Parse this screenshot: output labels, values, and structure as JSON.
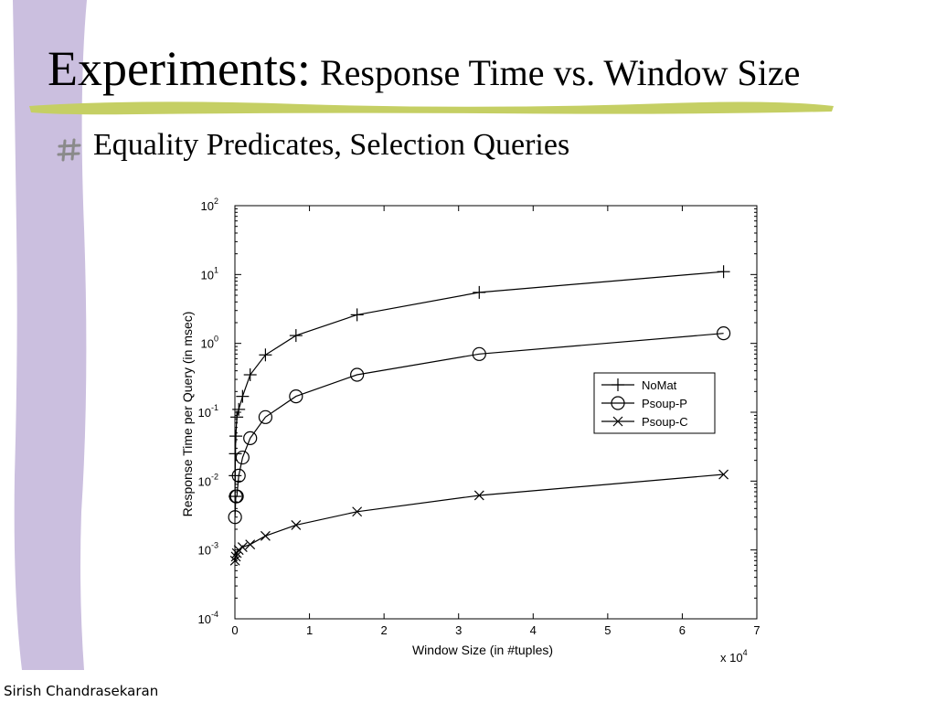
{
  "slide": {
    "title_main": "Experiments:",
    "title_sub": " Response Time vs. Window Size",
    "bullet_icon": "hash-bullet-icon",
    "bullet_text": "Equality Predicates, Selection Queries",
    "footer": "Sirish Chandrasekaran",
    "accent_bar_color": "#cbbfdf",
    "underline_color": "#c5cf64"
  },
  "chart_data": {
    "type": "line",
    "title": "",
    "xlabel": "Window Size (in #tuples)",
    "ylabel": "Response Time per Query (in msec)",
    "xscale_label": "x 10",
    "xscale_exp": "4",
    "yscale": "log",
    "xlim": [
      0,
      70000
    ],
    "ylim": [
      0.0001,
      100
    ],
    "xticks": [
      0,
      1,
      2,
      3,
      4,
      5,
      6,
      7
    ],
    "yticks": [
      {
        "base": "10",
        "exp": "-4",
        "value": 0.0001
      },
      {
        "base": "10",
        "exp": "-3",
        "value": 0.001
      },
      {
        "base": "10",
        "exp": "-2",
        "value": 0.01
      },
      {
        "base": "10",
        "exp": "-1",
        "value": 0.1
      },
      {
        "base": "10",
        "exp": "0",
        "value": 1
      },
      {
        "base": "10",
        "exp": "1",
        "value": 10
      },
      {
        "base": "10",
        "exp": "2",
        "value": 100
      }
    ],
    "grid": false,
    "legend_position": "right-middle",
    "series": [
      {
        "name": "NoMat",
        "marker": "plus",
        "x": [
          16,
          32,
          64,
          128,
          256,
          512,
          1024,
          2048,
          4096,
          8192,
          16384,
          32768,
          65536
        ],
        "y": [
          0.006,
          0.012,
          0.025,
          0.045,
          0.085,
          0.11,
          0.17,
          0.35,
          0.68,
          1.3,
          2.6,
          5.5,
          11
        ]
      },
      {
        "name": "Psoup-P",
        "marker": "circle",
        "x": [
          16,
          128,
          256,
          512,
          1024,
          2048,
          4096,
          8192,
          16384,
          32768,
          65536
        ],
        "y": [
          0.003,
          0.006,
          0.006,
          0.012,
          0.022,
          0.042,
          0.085,
          0.17,
          0.35,
          0.7,
          1.4
        ]
      },
      {
        "name": "Psoup-C",
        "marker": "x",
        "x": [
          16,
          128,
          256,
          512,
          1024,
          2048,
          4096,
          8192,
          16384,
          32768,
          65536
        ],
        "y": [
          0.0007,
          0.0008,
          0.0009,
          0.001,
          0.0011,
          0.0012,
          0.0016,
          0.0023,
          0.0036,
          0.0062,
          0.0125
        ]
      }
    ]
  }
}
